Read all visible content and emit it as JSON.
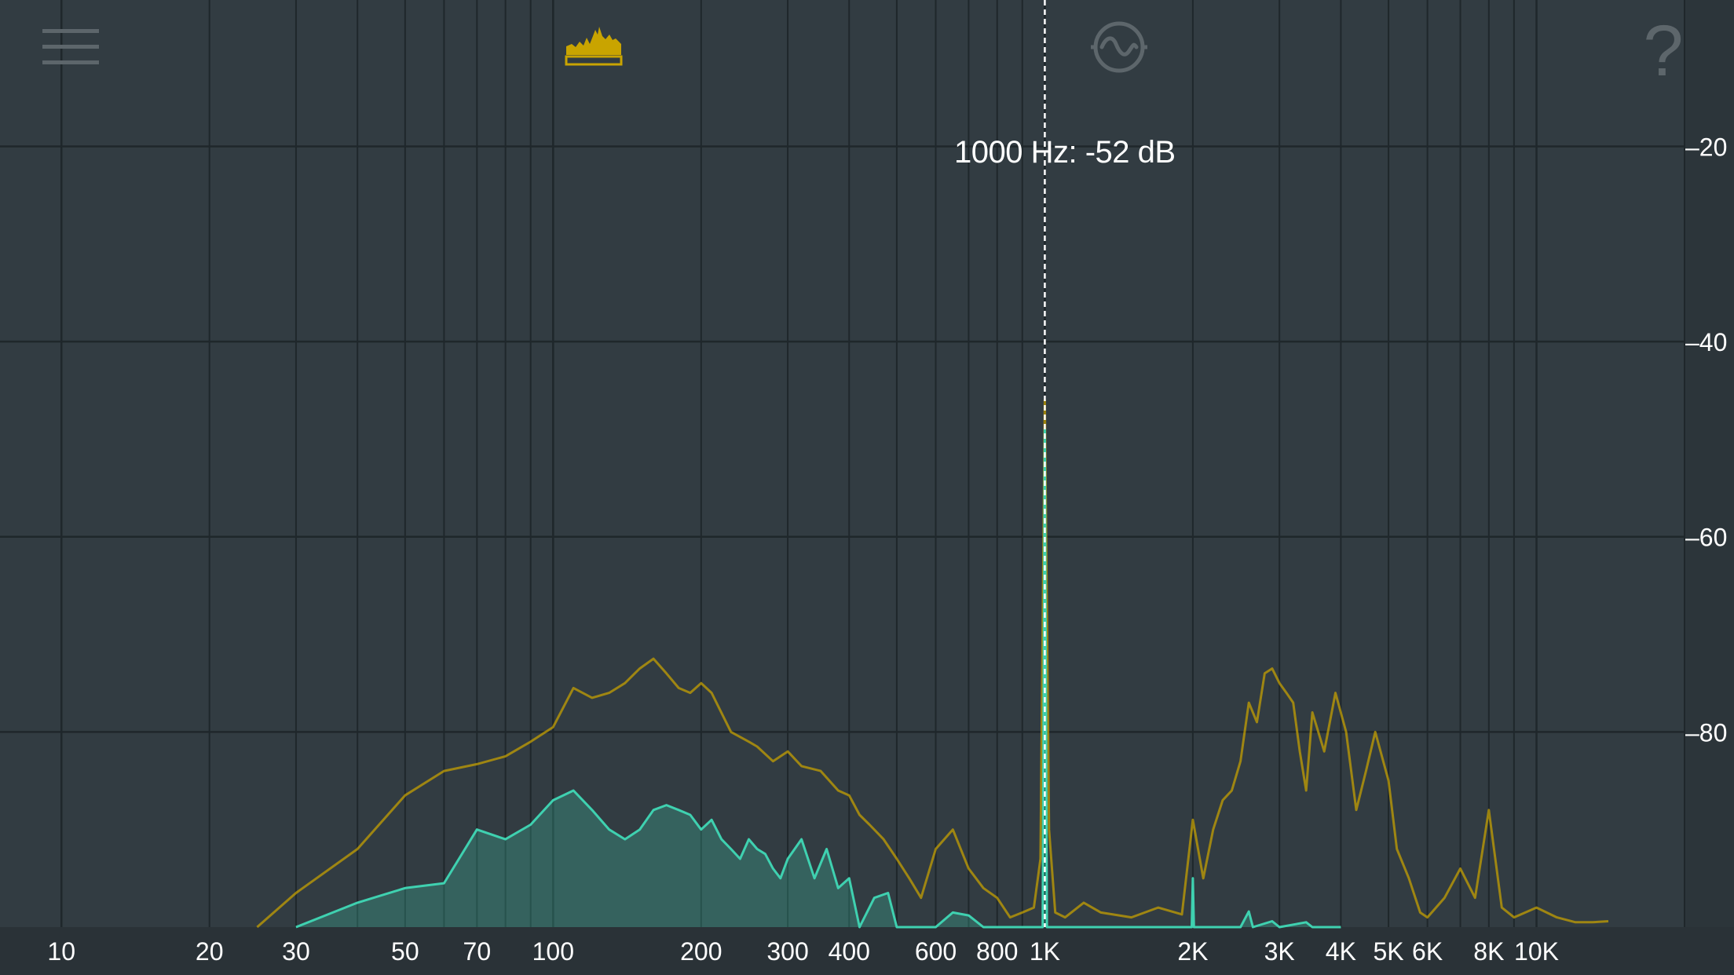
{
  "toolbar": {
    "menu_icon": "hamburger-menu-icon",
    "spectrum_icon": "spectrum-analyzer-icon",
    "signal_icon": "sine-wave-signal-icon",
    "help_icon": "question-mark-icon",
    "help_label": "?"
  },
  "colors": {
    "background": "#323c42",
    "grid": "#1f272b",
    "accent_yellow": "#c9a400",
    "teal": "#3fd1b0",
    "text": "#ffffff",
    "icon_inactive": "#5d666b"
  },
  "cursor": {
    "readout": "1000 Hz: -52 dB",
    "frequency_hz": 1000,
    "level_db": -52
  },
  "chart_data": {
    "type": "area",
    "x_scale": "log",
    "xlim": [
      7.5,
      20000
    ],
    "ylim": [
      -100,
      -5
    ],
    "x_unit": "Hz",
    "y_unit": "dB",
    "grid": true,
    "x_tick_values": [
      10,
      20,
      30,
      50,
      70,
      100,
      200,
      300,
      400,
      600,
      800,
      1000,
      2000,
      3000,
      4000,
      5000,
      6000,
      8000,
      10000
    ],
    "x_tick_labels": [
      "10",
      "20",
      "30",
      "50",
      "70",
      "100",
      "200",
      "300",
      "400",
      "600",
      "800",
      "1K",
      "2K",
      "3K",
      "4K",
      "5K",
      "6K",
      "8K",
      "10K"
    ],
    "y_tick_values": [
      -20,
      -40,
      -60,
      -80
    ],
    "y_tick_labels": [
      "–20",
      "–40",
      "–60",
      "–80"
    ],
    "series": [
      {
        "color": "#c9a400",
        "style": "line",
        "points": [
          [
            25,
            -100
          ],
          [
            30,
            -96.5
          ],
          [
            40,
            -92
          ],
          [
            50,
            -86.5
          ],
          [
            60,
            -84
          ],
          [
            70,
            -83.3
          ],
          [
            80,
            -82.5
          ],
          [
            90,
            -81
          ],
          [
            100,
            -79.5
          ],
          [
            110,
            -75.5
          ],
          [
            120,
            -76.5
          ],
          [
            130,
            -76
          ],
          [
            140,
            -75
          ],
          [
            150,
            -73.5
          ],
          [
            160,
            -72.5
          ],
          [
            170,
            -74
          ],
          [
            180,
            -75.5
          ],
          [
            190,
            -76
          ],
          [
            200,
            -75
          ],
          [
            210,
            -76
          ],
          [
            230,
            -80
          ],
          [
            250,
            -81
          ],
          [
            260,
            -81.5
          ],
          [
            280,
            -83
          ],
          [
            300,
            -82
          ],
          [
            320,
            -83.5
          ],
          [
            350,
            -84
          ],
          [
            380,
            -86
          ],
          [
            400,
            -86.5
          ],
          [
            420,
            -88.5
          ],
          [
            440,
            -89.5
          ],
          [
            470,
            -91
          ],
          [
            500,
            -93
          ],
          [
            530,
            -95
          ],
          [
            560,
            -97
          ],
          [
            600,
            -92
          ],
          [
            650,
            -90
          ],
          [
            700,
            -94
          ],
          [
            750,
            -96
          ],
          [
            800,
            -97
          ],
          [
            850,
            -99
          ],
          [
            900,
            -98.5
          ],
          [
            950,
            -98
          ],
          [
            980,
            -93
          ],
          [
            1000,
            -46
          ],
          [
            1020,
            -90
          ],
          [
            1050,
            -98.5
          ],
          [
            1100,
            -99
          ],
          [
            1200,
            -97.5
          ],
          [
            1300,
            -98.5
          ],
          [
            1500,
            -99
          ],
          [
            1700,
            -98
          ],
          [
            1900,
            -98.7
          ],
          [
            2000,
            -89
          ],
          [
            2100,
            -95
          ],
          [
            2200,
            -90
          ],
          [
            2300,
            -87
          ],
          [
            2400,
            -86
          ],
          [
            2500,
            -83
          ],
          [
            2600,
            -77
          ],
          [
            2700,
            -79
          ],
          [
            2800,
            -74
          ],
          [
            2900,
            -73.5
          ],
          [
            3000,
            -75
          ],
          [
            3100,
            -76
          ],
          [
            3200,
            -77
          ],
          [
            3300,
            -82
          ],
          [
            3400,
            -86
          ],
          [
            3500,
            -78
          ],
          [
            3700,
            -82
          ],
          [
            3900,
            -76
          ],
          [
            4100,
            -80
          ],
          [
            4300,
            -88
          ],
          [
            4500,
            -84
          ],
          [
            4700,
            -80
          ],
          [
            5000,
            -85
          ],
          [
            5200,
            -92
          ],
          [
            5500,
            -95
          ],
          [
            5800,
            -98.5
          ],
          [
            6000,
            -99
          ],
          [
            6500,
            -97
          ],
          [
            7000,
            -94
          ],
          [
            7500,
            -97
          ],
          [
            8000,
            -88
          ],
          [
            8500,
            -98
          ],
          [
            9000,
            -99
          ],
          [
            10000,
            -98
          ],
          [
            11000,
            -99
          ],
          [
            12000,
            -99.5
          ],
          [
            13000,
            -99.5
          ],
          [
            14000,
            -99.4
          ]
        ]
      },
      {
        "color": "#3fd1b0",
        "style": "area",
        "points": [
          [
            30,
            -100
          ],
          [
            40,
            -97.5
          ],
          [
            50,
            -96
          ],
          [
            60,
            -95.5
          ],
          [
            70,
            -90
          ],
          [
            80,
            -91
          ],
          [
            90,
            -89.5
          ],
          [
            100,
            -87
          ],
          [
            110,
            -86
          ],
          [
            120,
            -88
          ],
          [
            130,
            -90
          ],
          [
            140,
            -91
          ],
          [
            150,
            -90
          ],
          [
            160,
            -88
          ],
          [
            170,
            -87.5
          ],
          [
            180,
            -88
          ],
          [
            190,
            -88.5
          ],
          [
            200,
            -90
          ],
          [
            210,
            -89
          ],
          [
            220,
            -91
          ],
          [
            230,
            -92
          ],
          [
            240,
            -93
          ],
          [
            250,
            -91
          ],
          [
            260,
            -92
          ],
          [
            270,
            -92.5
          ],
          [
            280,
            -94
          ],
          [
            290,
            -95
          ],
          [
            300,
            -93
          ],
          [
            320,
            -91
          ],
          [
            340,
            -95
          ],
          [
            360,
            -92
          ],
          [
            380,
            -96
          ],
          [
            400,
            -95
          ],
          [
            420,
            -100
          ],
          [
            450,
            -97
          ],
          [
            480,
            -96.5
          ],
          [
            500,
            -100
          ],
          [
            600,
            -100
          ],
          [
            650,
            -98.5
          ],
          [
            700,
            -98.8
          ],
          [
            750,
            -100
          ],
          [
            900,
            -100
          ],
          [
            990,
            -100
          ],
          [
            1000,
            -49
          ],
          [
            1010,
            -100
          ],
          [
            1990,
            -100
          ],
          [
            2000,
            -95
          ],
          [
            2010,
            -100
          ],
          [
            2500,
            -100
          ],
          [
            2600,
            -98.4
          ],
          [
            2650,
            -100
          ],
          [
            2900,
            -99.4
          ],
          [
            3000,
            -100
          ],
          [
            3400,
            -99.5
          ],
          [
            3500,
            -100
          ],
          [
            4000,
            -100
          ]
        ]
      }
    ]
  }
}
